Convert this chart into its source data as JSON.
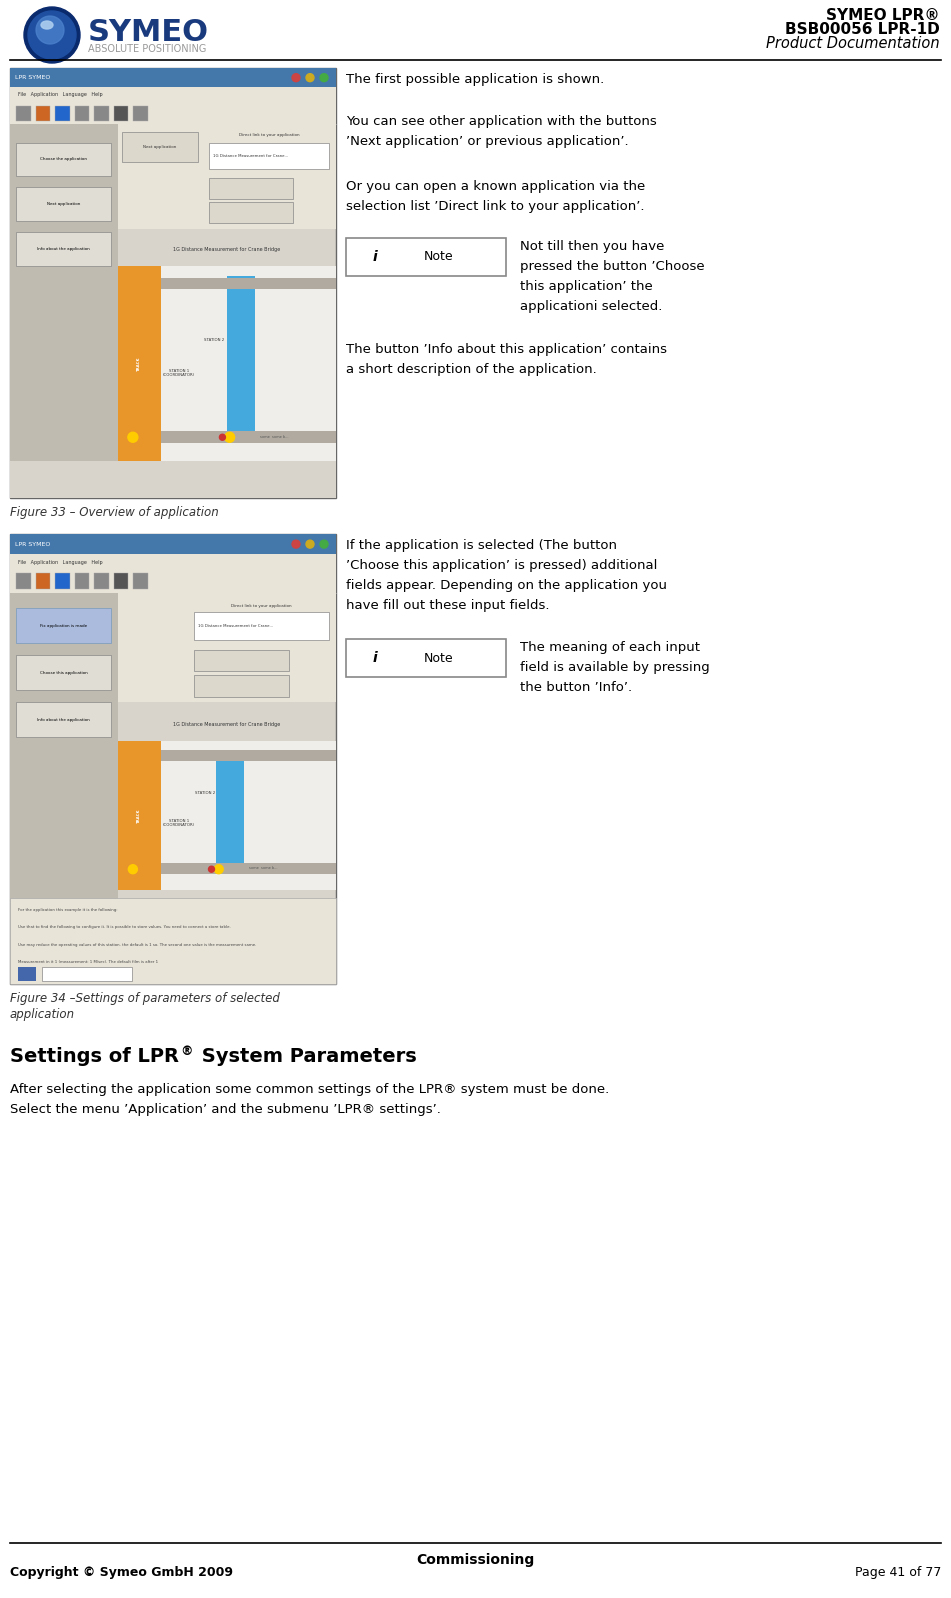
{
  "page_width": 9.51,
  "page_height": 15.98,
  "bg_color": "#ffffff",
  "header_title_line1": "SYMEO LPR®",
  "header_title_line2": "BSB00056 LPR-1D",
  "header_title_line3": "Product Documentation",
  "footer_center": "Commissioning",
  "footer_left": "Copyright © Symeo GmbH 2009",
  "footer_right": "Page 41 of 77",
  "fig33_caption": "Figure 33 – Overview of application",
  "fig34_caption_line1": "Figure 34 –Settings of parameters of selected",
  "fig34_caption_line2": "application",
  "section_title_pre": "Settings of LPR",
  "section_title_post": " System Parameters",
  "section_body_line1": "After selecting the application some common settings of the LPR® system must be done.",
  "section_body_line2": "Select the menu ’Application’ and the submenu ’LPR® settings’.",
  "col1_p1": "The first possible application is shown.",
  "col1_p2_l1": "You can see other application with the buttons",
  "col1_p2_l2": "’Next application’ or previous application’.",
  "col1_p3_l1": "Or you can open a known application via the",
  "col1_p3_l2": "selection list ’Direct link to your application’.",
  "col1_note_l1": "Not till then you have",
  "col1_note_l2": "pressed the button ’Choose",
  "col1_note_l3": "this application’ the",
  "col1_note_l4": "applicationi selected.",
  "col1_p4_l1": "The button ’Info about this application’ contains",
  "col1_p4_l2": "a short description of the application.",
  "col2_p1_l1": "If the application is selected (The button",
  "col2_p1_l2": "’Choose this application’ is pressed) additional",
  "col2_p1_l3": "fields appear. Depending on the application you",
  "col2_p1_l4": "have fill out these input fields.",
  "col2_note_l1": "The meaning of each input",
  "col2_note_l2": "field is available by pressing",
  "col2_note_l3": "the button ’Info’.",
  "divider_color": "#000000",
  "text_color": "#000000",
  "caption_color": "#333333"
}
